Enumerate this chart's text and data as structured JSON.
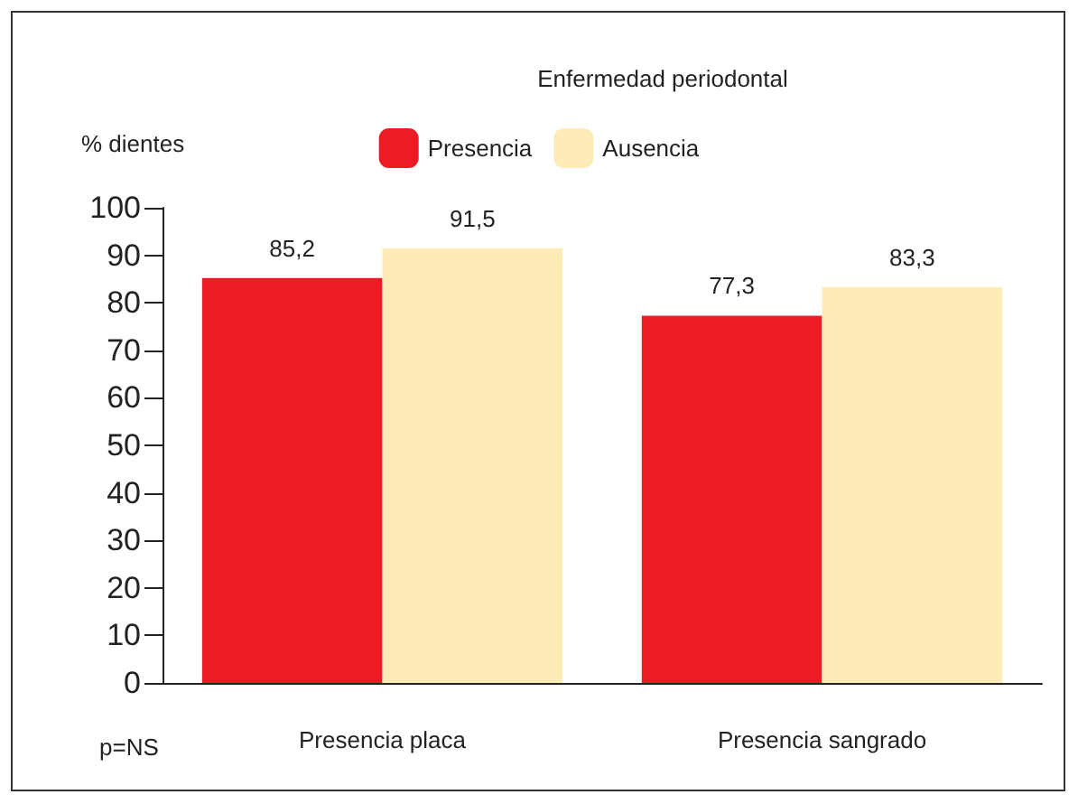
{
  "chart_data": {
    "type": "bar",
    "legend_title": "Enfermedad periodontal",
    "ylabel": "% dientes",
    "annotations": [
      "p=NS"
    ],
    "categories": [
      "Presencia placa",
      "Presencia sangrado"
    ],
    "series": [
      {
        "name": "Presencia",
        "color": "#ed1c24",
        "values": [
          85.2,
          77.3
        ],
        "value_labels": [
          "85,2",
          "77,3"
        ]
      },
      {
        "name": "Ausencia",
        "color": "#fdebb8",
        "values": [
          91.5,
          83.3
        ],
        "value_labels": [
          "91,5",
          "83,3"
        ]
      }
    ],
    "ylim": [
      0,
      100
    ],
    "yticks": [
      0,
      10,
      20,
      30,
      40,
      50,
      60,
      70,
      80,
      90,
      100
    ],
    "grid": false,
    "legend": "top"
  }
}
